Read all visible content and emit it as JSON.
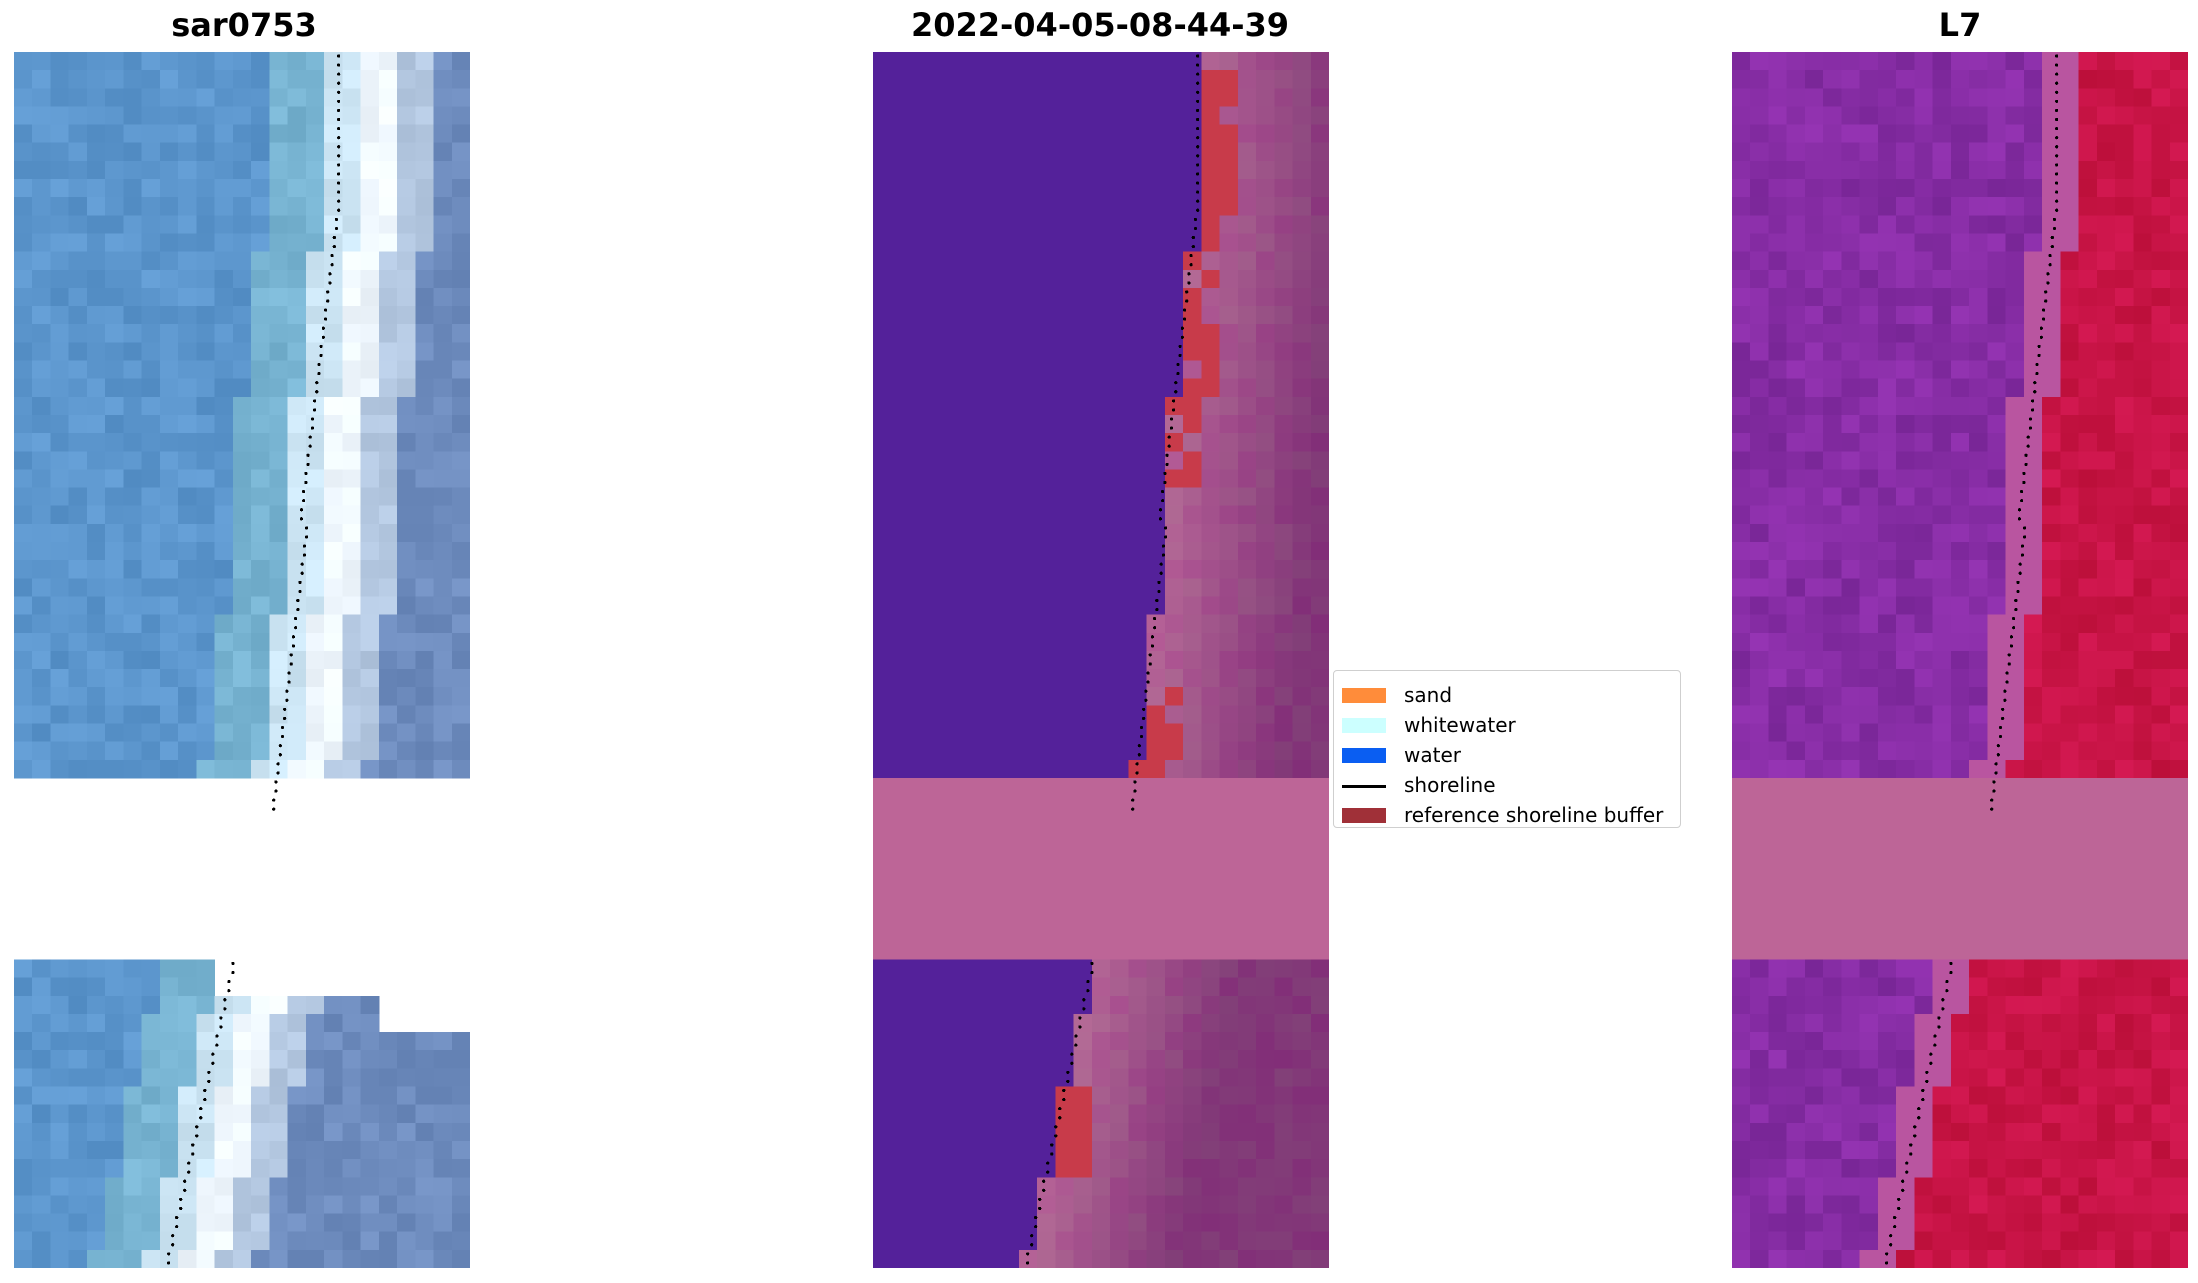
{
  "panels": [
    {
      "title": "sar0753",
      "kind": "rgb"
    },
    {
      "title": "2022-04-05-08-44-39",
      "kind": "classified"
    },
    {
      "title": "L7",
      "kind": "mndwi"
    }
  ],
  "legend": [
    {
      "label": "sand",
      "color": "#ff8c3a",
      "type": "patch"
    },
    {
      "label": "whitewater",
      "color": "#ccffff",
      "type": "patch"
    },
    {
      "label": "water",
      "color": "#0a5ef2",
      "type": "patch"
    },
    {
      "label": "shoreline",
      "color": "#000000",
      "type": "line"
    },
    {
      "label": "reference shoreline buffer",
      "color": "#a03038",
      "type": "patch"
    }
  ],
  "colors": {
    "nodata": "#ffffff",
    "classified_water_purple": "#54219a",
    "classified_land_pink": "#bd6597",
    "reference_buffer_red": "#c83b4a",
    "mndwi_purple": "#8a2fa6",
    "mndwi_red": "#c8103f",
    "rgb_water_blue": "#5e9bcf",
    "rgb_whitewater": "#f0f8ff"
  },
  "chart_data": {
    "type": "heatmap",
    "description_free": true,
    "layers": [
      "satellite image",
      "classified image",
      "index image"
    ],
    "shoreline": "dotted black line"
  }
}
